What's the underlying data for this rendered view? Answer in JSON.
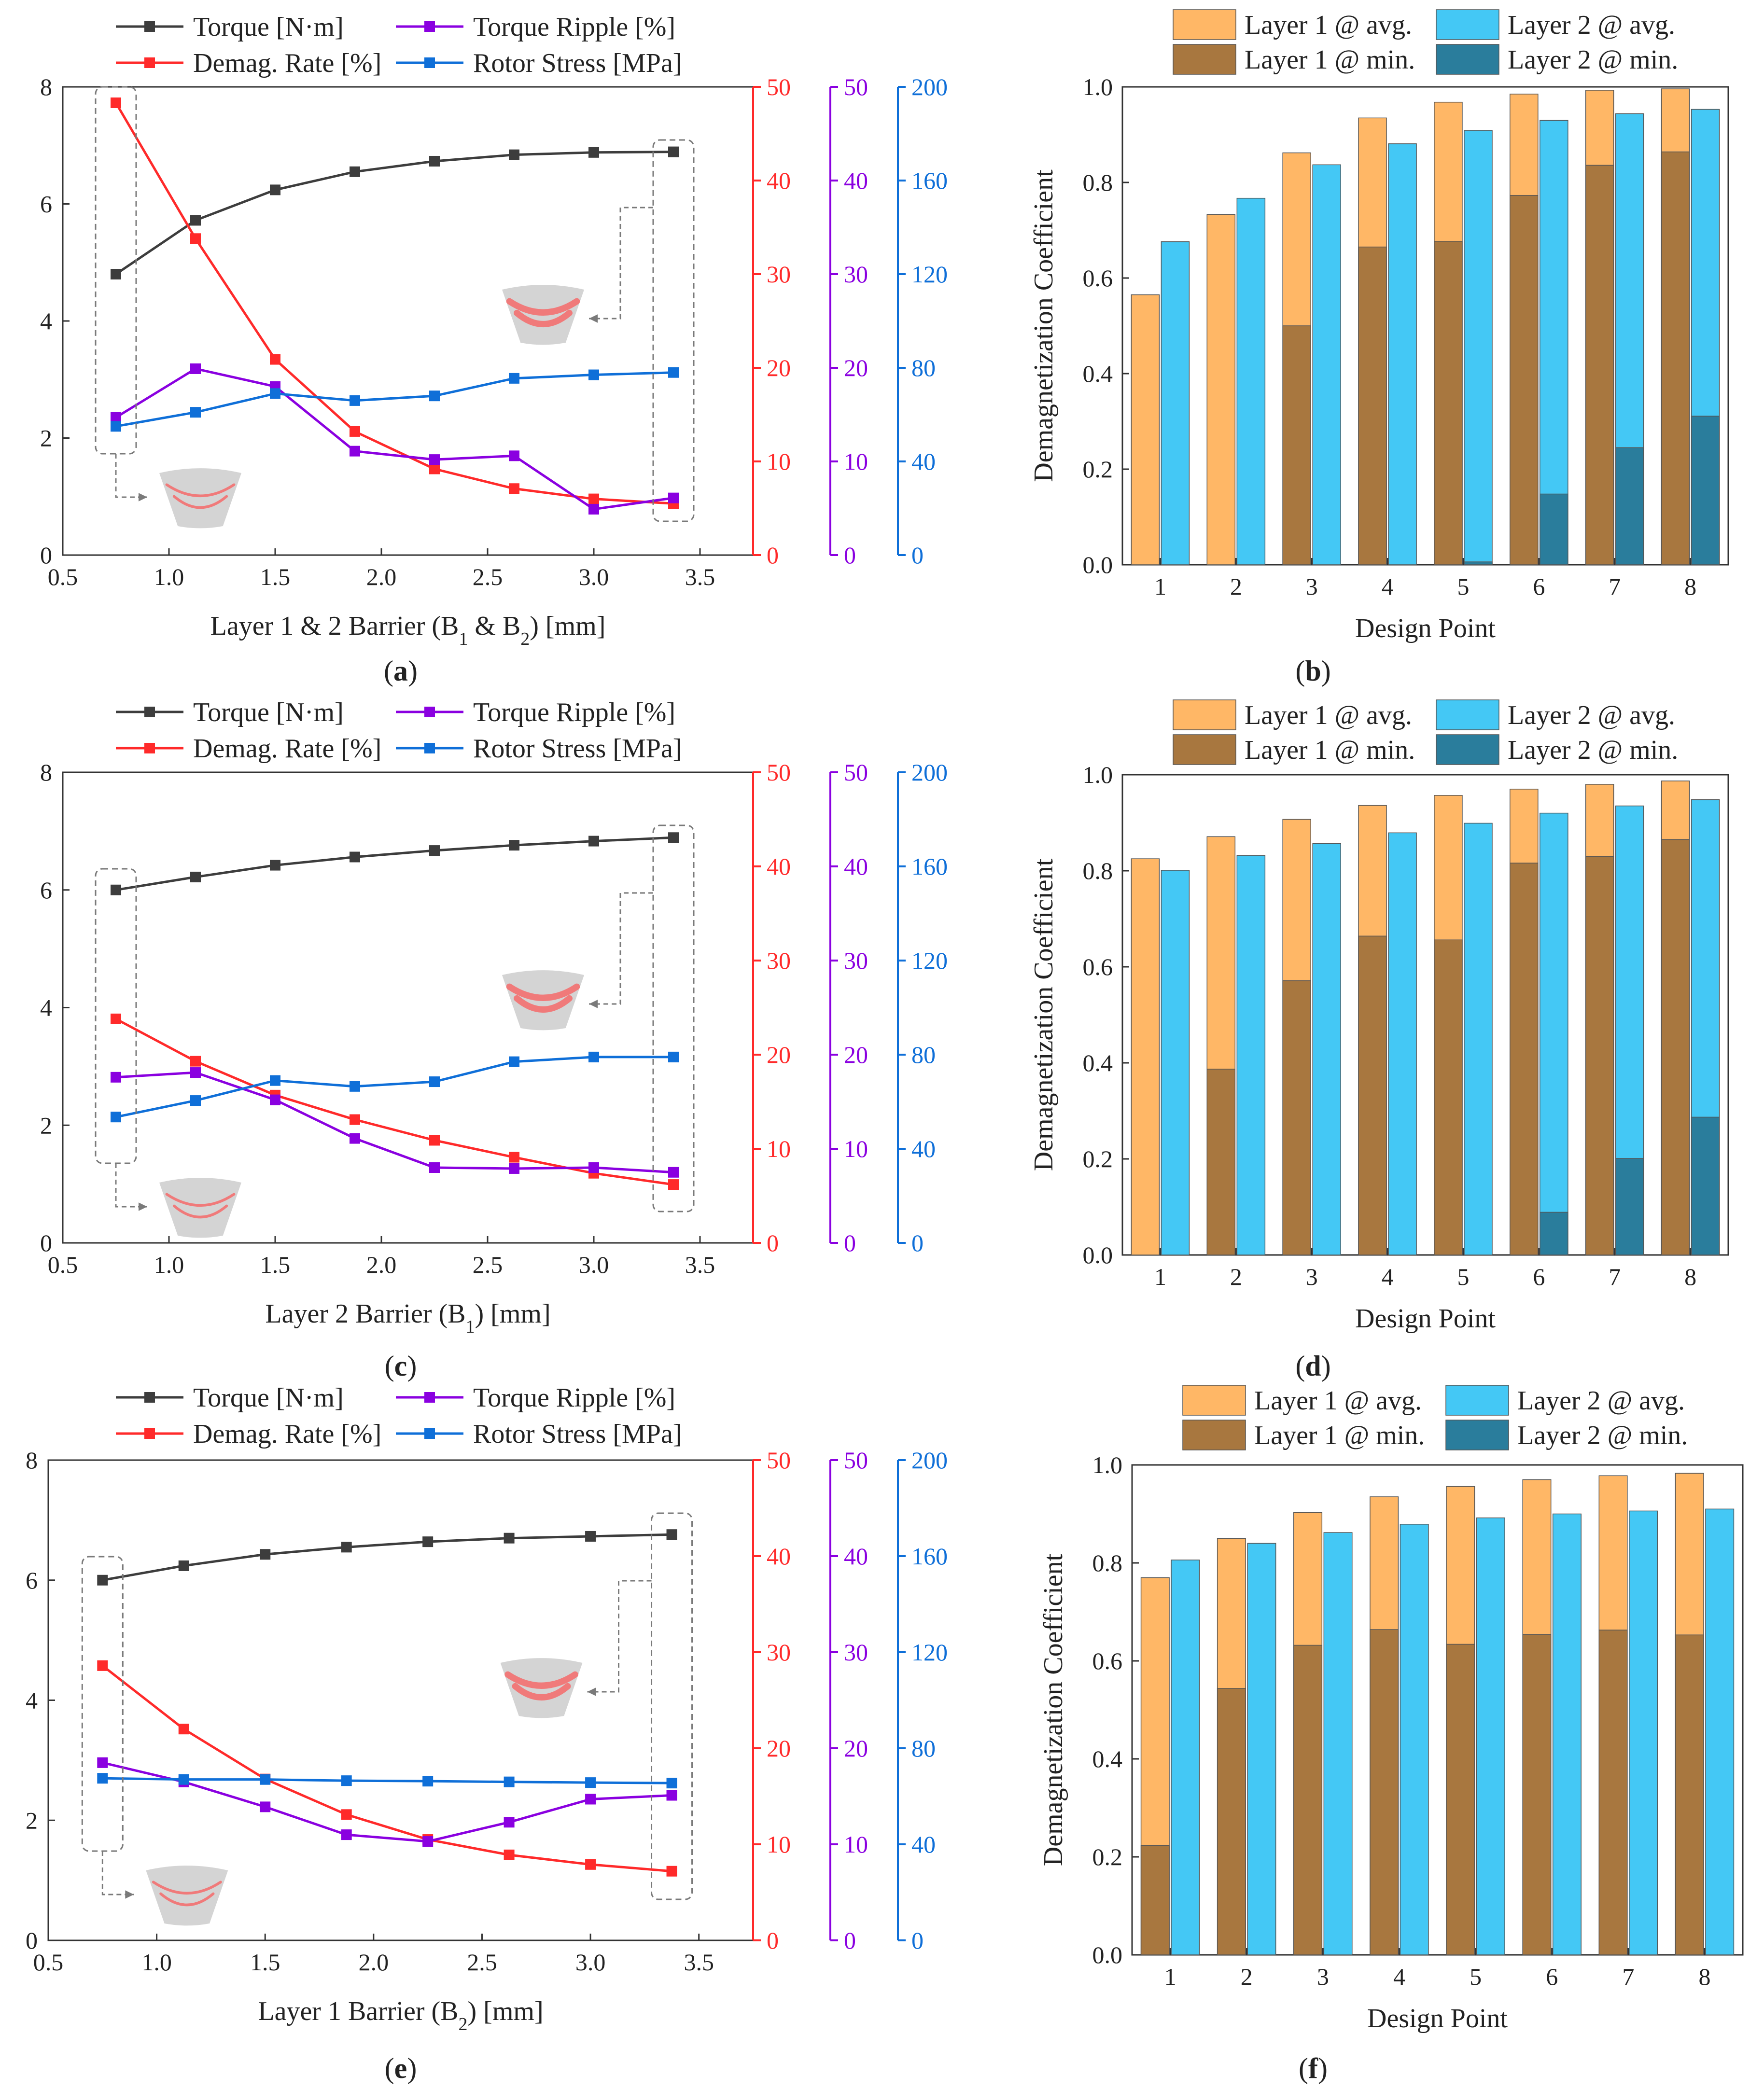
{
  "chart_data": [
    {
      "id": "a",
      "type": "line",
      "panel_label": "(a)",
      "xlabel": "Layer 1 & 2 Barrier (B",
      "xlabel_sub": "1",
      "xlabel_mid": " & B",
      "xlabel_sub2": "2",
      "xlabel_end": ") [mm]",
      "xlim": [
        0.5,
        3.75
      ],
      "xticks": [
        "0.5",
        "1.0",
        "1.5",
        "2.0",
        "2.5",
        "3.0",
        "3.5"
      ],
      "x": [
        0.75,
        1.125,
        1.5,
        1.875,
        2.25,
        2.625,
        3.0,
        3.375
      ],
      "axes": {
        "left": {
          "ylim": [
            0,
            8
          ],
          "ticks": [
            "0",
            "2",
            "4",
            "6",
            "8"
          ],
          "color": "#444444"
        },
        "red": {
          "ylim": [
            0,
            50
          ],
          "ticks": [
            "0",
            "10",
            "20",
            "30",
            "40",
            "50"
          ],
          "color": "#ff2a2a"
        },
        "purple": {
          "ylim": [
            0,
            50
          ],
          "ticks": [
            "0",
            "10",
            "20",
            "30",
            "40",
            "50"
          ],
          "color": "#8a00e0"
        },
        "blue": {
          "ylim": [
            0,
            200
          ],
          "ticks": [
            "0",
            "40",
            "80",
            "120",
            "160",
            "200"
          ],
          "color": "#0f6fd8"
        }
      },
      "series": [
        {
          "name": "Torque [N·m]",
          "axis": "left",
          "color": "#3d3d3d",
          "values": [
            4.8,
            5.72,
            6.24,
            6.55,
            6.73,
            6.84,
            6.88,
            6.89
          ]
        },
        {
          "name": "Demag. Rate [%]",
          "axis": "red",
          "color": "#ff2a2a",
          "values": [
            48.3,
            33.8,
            20.9,
            13.2,
            9.2,
            7.1,
            6.0,
            5.5
          ]
        },
        {
          "name": "Torque Ripple [%]",
          "axis": "purple",
          "color": "#8a00e0",
          "values": [
            14.7,
            19.9,
            18.0,
            11.1,
            10.2,
            10.6,
            4.9,
            6.1
          ]
        },
        {
          "name": "Rotor Stress [MPa]",
          "axis": "blue",
          "color": "#0f6fd8",
          "values": [
            55.0,
            61.0,
            69.0,
            66.0,
            68.0,
            75.5,
            77.0,
            78.0
          ]
        }
      ],
      "legend": [
        "Torque [N·m]",
        "Torque Ripple [%]",
        "Demag. Rate [%]",
        "Rotor Stress [MPa]"
      ]
    },
    {
      "id": "b",
      "type": "bar",
      "panel_label": "(b)",
      "xlabel": "Design Point",
      "ylabel": "Demagnetization Coefficient",
      "ylim": [
        0,
        1.0
      ],
      "yticks": [
        "0.0",
        "0.2",
        "0.4",
        "0.6",
        "0.8",
        "1.0"
      ],
      "categories": [
        "1",
        "2",
        "3",
        "4",
        "5",
        "6",
        "7",
        "8"
      ],
      "series": [
        {
          "name": "Layer 1 @ avg.",
          "color": "#ffb766",
          "values": [
            0.565,
            0.733,
            0.862,
            0.935,
            0.968,
            0.985,
            0.993,
            0.996
          ]
        },
        {
          "name": "Layer 1 @ min.",
          "color": "#a8773f",
          "values": [
            0.0,
            0.0,
            0.5,
            0.665,
            0.677,
            0.773,
            0.836,
            0.864
          ]
        },
        {
          "name": "Layer 2 @ avg.",
          "color": "#44c8f5",
          "values": [
            0.676,
            0.767,
            0.837,
            0.881,
            0.909,
            0.93,
            0.944,
            0.953
          ]
        },
        {
          "name": "Layer 2 @ min.",
          "color": "#2a7d9c",
          "values": [
            0.0,
            0.0,
            0.0,
            0.0,
            0.006,
            0.148,
            0.245,
            0.311
          ]
        }
      ],
      "legend": [
        "Layer 1 @ avg.",
        "Layer 2 @ avg.",
        "Layer 1 @ min.",
        "Layer 2 @ min."
      ]
    },
    {
      "id": "c",
      "type": "line",
      "panel_label": "(c)",
      "xlabel": "Layer 2 Barrier (B",
      "xlabel_sub": "1",
      "xlabel_mid": "",
      "xlabel_sub2": "",
      "xlabel_end": ") [mm]",
      "xlim": [
        0.5,
        3.75
      ],
      "xticks": [
        "0.5",
        "1.0",
        "1.5",
        "2.0",
        "2.5",
        "3.0",
        "3.5"
      ],
      "x": [
        0.75,
        1.125,
        1.5,
        1.875,
        2.25,
        2.625,
        3.0,
        3.375
      ],
      "axes": {
        "left": {
          "ylim": [
            0,
            8
          ],
          "ticks": [
            "0",
            "2",
            "4",
            "6",
            "8"
          ],
          "color": "#444444"
        },
        "red": {
          "ylim": [
            0,
            50
          ],
          "ticks": [
            "0",
            "10",
            "20",
            "30",
            "40",
            "50"
          ],
          "color": "#ff2a2a"
        },
        "purple": {
          "ylim": [
            0,
            50
          ],
          "ticks": [
            "0",
            "10",
            "20",
            "30",
            "40",
            "50"
          ],
          "color": "#8a00e0"
        },
        "blue": {
          "ylim": [
            0,
            200
          ],
          "ticks": [
            "0",
            "40",
            "80",
            "120",
            "160",
            "200"
          ],
          "color": "#0f6fd8"
        }
      },
      "series": [
        {
          "name": "Torque [N·m]",
          "axis": "left",
          "color": "#3d3d3d",
          "values": [
            6.0,
            6.22,
            6.42,
            6.56,
            6.67,
            6.76,
            6.83,
            6.89
          ]
        },
        {
          "name": "Demag. Rate [%]",
          "axis": "red",
          "color": "#ff2a2a",
          "values": [
            23.8,
            19.3,
            15.7,
            13.1,
            10.9,
            9.1,
            7.4,
            6.2
          ]
        },
        {
          "name": "Torque Ripple [%]",
          "axis": "purple",
          "color": "#8a00e0",
          "values": [
            17.6,
            18.1,
            15.2,
            11.1,
            8.0,
            7.9,
            8.0,
            7.5
          ]
        },
        {
          "name": "Rotor Stress [MPa]",
          "axis": "blue",
          "color": "#0f6fd8",
          "values": [
            53.5,
            60.5,
            69.0,
            66.5,
            68.5,
            77.0,
            79.0,
            79.0
          ]
        }
      ],
      "legend": [
        "Torque [N·m]",
        "Torque Ripple [%]",
        "Demag. Rate [%]",
        "Rotor Stress [MPa]"
      ]
    },
    {
      "id": "d",
      "type": "bar",
      "panel_label": "(d)",
      "xlabel": "Design Point",
      "ylabel": "Demagnetization Coefficient",
      "ylim": [
        0,
        1.0
      ],
      "yticks": [
        "0.0",
        "0.2",
        "0.4",
        "0.6",
        "0.8",
        "1.0"
      ],
      "categories": [
        "1",
        "2",
        "3",
        "4",
        "5",
        "6",
        "7",
        "8"
      ],
      "series": [
        {
          "name": "Layer 1 @ avg.",
          "color": "#ffb766",
          "values": [
            0.825,
            0.871,
            0.907,
            0.936,
            0.957,
            0.97,
            0.98,
            0.987
          ]
        },
        {
          "name": "Layer 1 @ min.",
          "color": "#a8773f",
          "values": [
            0.0,
            0.387,
            0.571,
            0.664,
            0.656,
            0.816,
            0.83,
            0.865
          ]
        },
        {
          "name": "Layer 2 @ avg.",
          "color": "#44c8f5",
          "values": [
            0.801,
            0.832,
            0.857,
            0.879,
            0.899,
            0.92,
            0.935,
            0.948
          ]
        },
        {
          "name": "Layer 2 @ min.",
          "color": "#2a7d9c",
          "values": [
            0.0,
            0.0,
            0.0,
            0.0,
            0.0,
            0.089,
            0.201,
            0.287
          ]
        }
      ],
      "legend": [
        "Layer 1 @ avg.",
        "Layer 2 @ avg.",
        "Layer 1 @ min.",
        "Layer 2 @ min."
      ]
    },
    {
      "id": "e",
      "type": "line",
      "panel_label": "(e)",
      "xlabel": "Layer 1 Barrier (B",
      "xlabel_sub": "2",
      "xlabel_mid": "",
      "xlabel_sub2": "",
      "xlabel_end": ") [mm]",
      "xlim": [
        0.5,
        3.75
      ],
      "xticks": [
        "0.5",
        "1.0",
        "1.5",
        "2.0",
        "2.5",
        "3.0",
        "3.5"
      ],
      "x": [
        0.75,
        1.125,
        1.5,
        1.875,
        2.25,
        2.625,
        3.0,
        3.375
      ],
      "axes": {
        "left": {
          "ylim": [
            0,
            8
          ],
          "ticks": [
            "0",
            "2",
            "4",
            "6",
            "8"
          ],
          "color": "#444444"
        },
        "red": {
          "ylim": [
            0,
            50
          ],
          "ticks": [
            "0",
            "10",
            "20",
            "30",
            "40",
            "50"
          ],
          "color": "#ff2a2a"
        },
        "purple": {
          "ylim": [
            0,
            50
          ],
          "ticks": [
            "0",
            "10",
            "20",
            "30",
            "40",
            "50"
          ],
          "color": "#8a00e0"
        },
        "blue": {
          "ylim": [
            0,
            200
          ],
          "ticks": [
            "0",
            "40",
            "80",
            "120",
            "160",
            "200"
          ],
          "color": "#0f6fd8"
        }
      },
      "series": [
        {
          "name": "Torque [N·m]",
          "axis": "left",
          "color": "#3d3d3d",
          "values": [
            6.0,
            6.24,
            6.43,
            6.55,
            6.64,
            6.7,
            6.73,
            6.76
          ]
        },
        {
          "name": "Demag. Rate [%]",
          "axis": "red",
          "color": "#ff2a2a",
          "values": [
            28.6,
            22.0,
            16.8,
            13.1,
            10.5,
            8.9,
            7.9,
            7.2
          ]
        },
        {
          "name": "Torque Ripple [%]",
          "axis": "purple",
          "color": "#8a00e0",
          "values": [
            18.5,
            16.5,
            13.9,
            11.0,
            10.3,
            12.3,
            14.7,
            15.1
          ]
        },
        {
          "name": "Rotor Stress [MPa]",
          "axis": "blue",
          "color": "#0f6fd8",
          "values": [
            67.5,
            67.0,
            67.0,
            66.5,
            66.3,
            66.0,
            65.7,
            65.5
          ]
        }
      ],
      "legend": [
        "Torque [N·m]",
        "Torque Ripple [%]",
        "Demag. Rate [%]",
        "Rotor Stress [MPa]"
      ]
    },
    {
      "id": "f",
      "type": "bar",
      "panel_label": "(f)",
      "xlabel": "Design Point",
      "ylabel": "Demagnetization Coefficient",
      "ylim": [
        0,
        1.0
      ],
      "yticks": [
        "0.0",
        "0.2",
        "0.4",
        "0.6",
        "0.8",
        "1.0"
      ],
      "categories": [
        "1",
        "2",
        "3",
        "4",
        "5",
        "6",
        "7",
        "8"
      ],
      "series": [
        {
          "name": "Layer 1 @ avg.",
          "color": "#ffb766",
          "values": [
            0.77,
            0.85,
            0.903,
            0.935,
            0.956,
            0.97,
            0.978,
            0.983
          ]
        },
        {
          "name": "Layer 1 @ min.",
          "color": "#a8773f",
          "values": [
            0.223,
            0.544,
            0.632,
            0.664,
            0.634,
            0.654,
            0.663,
            0.653
          ]
        },
        {
          "name": "Layer 2 @ avg.",
          "color": "#44c8f5",
          "values": [
            0.806,
            0.84,
            0.862,
            0.879,
            0.892,
            0.9,
            0.906,
            0.91
          ]
        },
        {
          "name": "Layer 2 @ min.",
          "color": "#2a7d9c",
          "values": [
            0.0,
            0.0,
            0.0,
            0.0,
            0.0,
            0.0,
            0.0,
            0.0
          ]
        }
      ],
      "legend": [
        "Layer 1 @ avg.",
        "Layer 2 @ avg.",
        "Layer 1 @ min.",
        "Layer 2 @ min."
      ]
    }
  ]
}
